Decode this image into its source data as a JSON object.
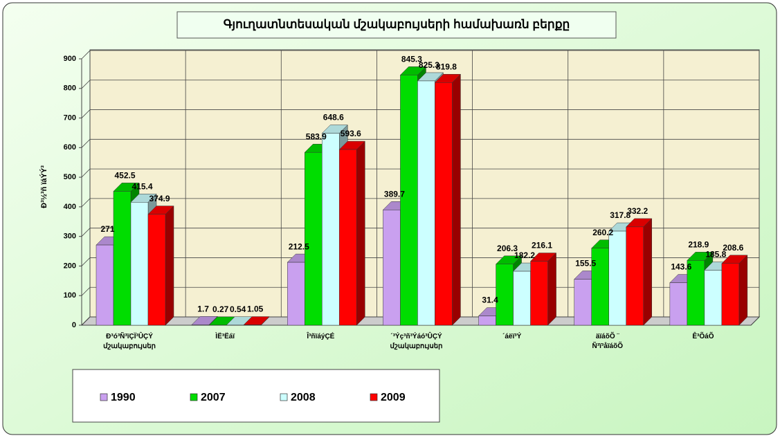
{
  "chart_data": {
    "type": "bar3d",
    "title": "Գյուղատնտեսական մշակաբույսերի համախառն բերքը",
    "y_label": "Ð³½³ñ ïáÝÝ³",
    "categories": [
      "Ð³ó³Ñ³ïÇÏ³ÛÇÝ\nմշակաբույսեր",
      "ÌË³Ëáï",
      "Î³ñïáýÇÉ",
      "´³Ýç³ñ³Ýáó³ÛÇÝ\nմշակաբույսեր",
      "´áëï³Ý",
      "äïáõÕ ¨\nÑ³ï³åïáõÕ",
      "Ê³ÕáÕ"
    ],
    "series": [
      {
        "name": "1990",
        "color": "#c9a0ef",
        "values": [
          271,
          1.7,
          212.5,
          389.7,
          31.4,
          155.5,
          143.6
        ]
      },
      {
        "name": "2007",
        "color": "#00dd00",
        "values": [
          452.5,
          0.27,
          583.9,
          845.3,
          206.3,
          260.2,
          218.9
        ]
      },
      {
        "name": "2008",
        "color": "#ccffff",
        "values": [
          415.4,
          0.54,
          648.6,
          825.3,
          182.2,
          317.8,
          185.8
        ]
      },
      {
        "name": "2009",
        "color": "#ff0000",
        "values": [
          374.9,
          1.05,
          593.6,
          819.8,
          216.1,
          332.2,
          208.6
        ]
      }
    ],
    "ylim": [
      0,
      900
    ],
    "yticks": [
      0,
      100,
      200,
      300,
      400,
      500,
      600,
      700,
      800,
      900
    ],
    "grid": true
  }
}
